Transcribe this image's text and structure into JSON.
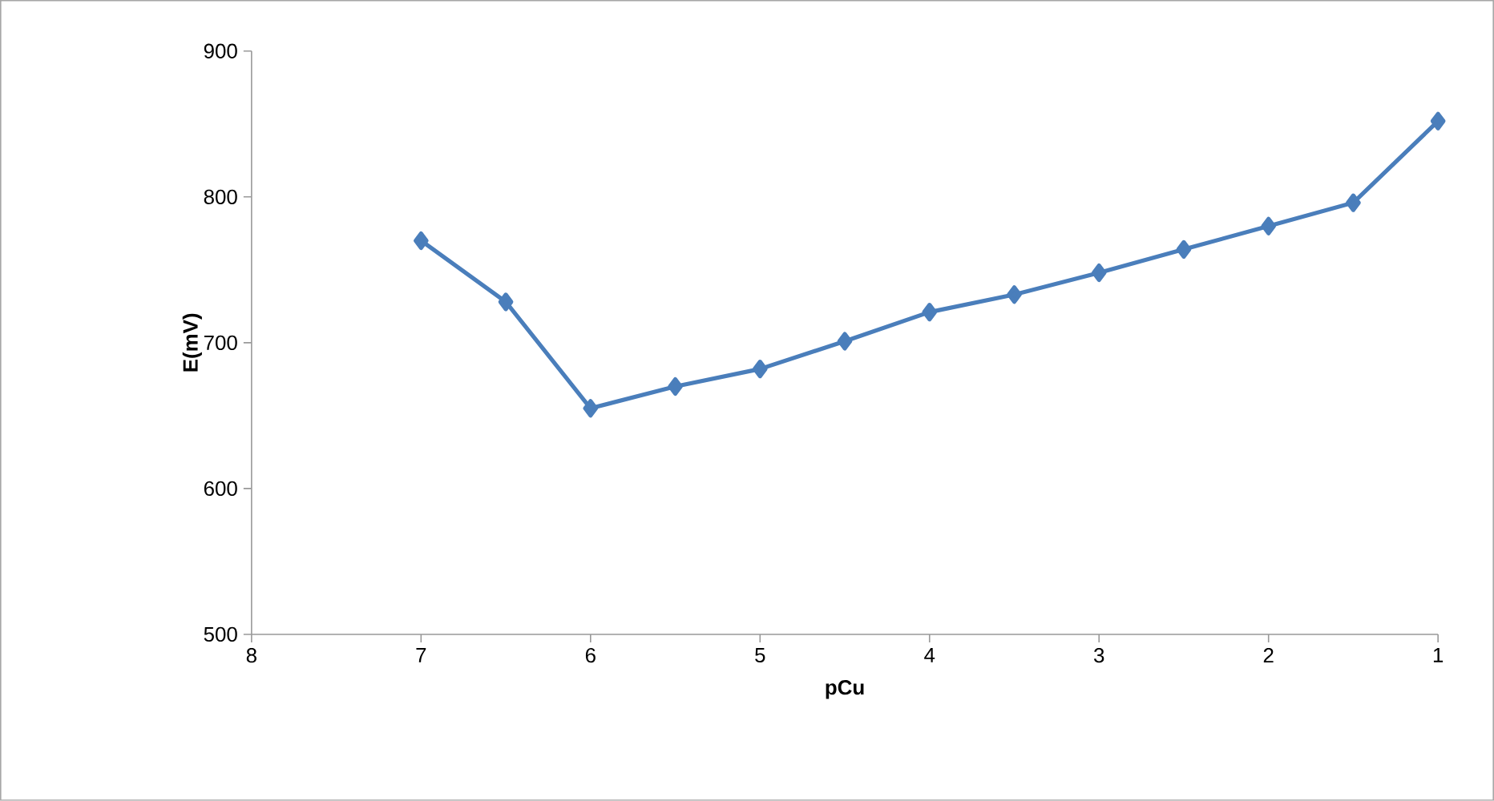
{
  "chart_data": {
    "type": "line",
    "xlabel": "pCu",
    "ylabel": "E(mV)",
    "x": [
      7,
      6.5,
      6,
      5.5,
      5,
      4.5,
      4,
      3.5,
      3,
      2.5,
      2,
      1.5,
      1
    ],
    "series": [
      {
        "color": "#4a7ebb",
        "values": [
          770,
          728,
          655,
          670,
          682,
          701,
          721,
          733,
          748,
          764,
          780,
          796,
          852
        ]
      }
    ],
    "xlim": [
      8,
      1
    ],
    "xticks": [
      8,
      7,
      6,
      5,
      4,
      3,
      2,
      1
    ],
    "ylim": [
      500,
      900
    ],
    "yticks": [
      500,
      600,
      700,
      800,
      900
    ],
    "grid": false,
    "marker": "diamond",
    "line_style": "solid"
  }
}
